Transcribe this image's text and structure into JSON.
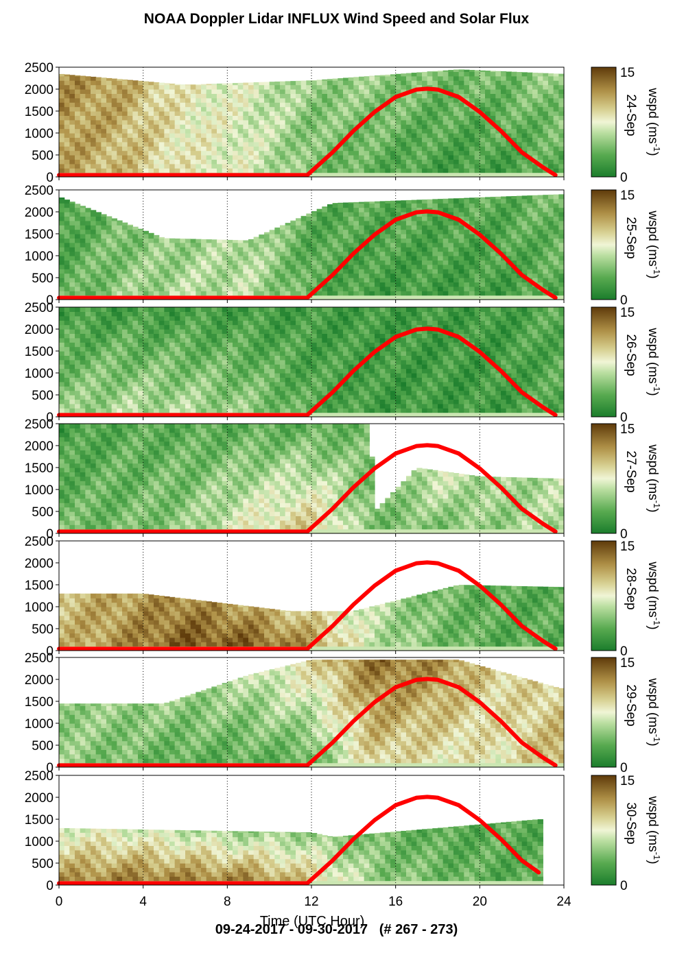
{
  "title": "NOAA Doppler Lidar INFLUX Wind Speed and Solar Flux",
  "footer": "09-24-2017 - 09-30-2017   (# 267 - 273)",
  "colors": {
    "solar_flux_line": "#ff0000",
    "wspd_low": "#1b7d2c",
    "wspd_mid": "#f0f5d6",
    "wspd_high": "#5e3a0a",
    "no_data": "#ffffff"
  },
  "chart_data": {
    "type": "heatmap",
    "title": "NOAA Doppler Lidar INFLUX Wind Speed and Solar Flux",
    "xlabel": "Time (UTC Hour)",
    "ylabel": "",
    "xlim": [
      0,
      24
    ],
    "ylim": [
      0,
      2500
    ],
    "x_ticks": [
      0,
      4,
      8,
      12,
      16,
      20,
      24
    ],
    "y_ticks": [
      0,
      500,
      1000,
      1500,
      2000,
      2500
    ],
    "grid": "vertical dotted lines at 4, 8, 12, 16, 20, 24",
    "colorbar": {
      "label": "wspd (ms-1)",
      "label_main": "wspd (ms",
      "label_sup": "-1",
      "label_close": ")",
      "min": 0,
      "max": 15,
      "ticks": [
        0,
        15
      ]
    },
    "solar_flux": {
      "x": [
        0,
        11.8,
        13,
        14,
        15,
        16,
        17,
        17.5,
        18,
        19,
        20,
        21,
        22,
        23,
        23.6
      ],
      "y": [
        40,
        40,
        560,
        1050,
        1480,
        1820,
        1990,
        2010,
        1990,
        1820,
        1480,
        1050,
        560,
        220,
        40
      ]
    },
    "panels": [
      {
        "date_label": "24-Sep",
        "data_end_hour": 23.8,
        "solar_end_hour": 23.6,
        "top_profile": [
          [
            "h",
            0,
            2350
          ],
          [
            "h",
            6,
            2100
          ],
          [
            "h",
            12,
            2200
          ],
          [
            "h",
            19,
            2450
          ],
          [
            "h",
            23.8,
            2350
          ]
        ],
        "description_fields": {
          "wind_time_hours": [
            0,
            3,
            6,
            9,
            12,
            15,
            18,
            21,
            23.8
          ],
          "wind_low_ms": [
            11,
            10,
            8,
            7,
            4,
            3,
            2,
            2,
            3
          ],
          "wind_high_ms": [
            12,
            11,
            8,
            7,
            5,
            5,
            4,
            4,
            5
          ]
        }
      },
      {
        "date_label": "25-Sep",
        "data_end_hour": 23.8,
        "solar_end_hour": 23.6,
        "top_profile": [
          [
            "h",
            0,
            2350
          ],
          [
            "h",
            5,
            1400
          ],
          [
            "h",
            9,
            1350
          ],
          [
            "h",
            13,
            2200
          ],
          [
            "h",
            23.8,
            2400
          ]
        ],
        "description_fields": {
          "wind_time_hours": [
            0,
            3,
            6,
            9,
            12,
            15,
            18,
            21,
            23.8
          ],
          "wind_low_ms": [
            3,
            5,
            6,
            6,
            3,
            2,
            2,
            2,
            3
          ],
          "wind_high_ms": [
            2,
            4,
            5,
            6,
            3,
            3,
            3,
            3,
            4
          ]
        }
      },
      {
        "date_label": "26-Sep",
        "data_end_hour": 23.8,
        "solar_end_hour": 23.6,
        "top_profile": [
          [
            "h",
            0,
            2500
          ],
          [
            "h",
            23.8,
            2500
          ]
        ],
        "description_fields": {
          "wind_time_hours": [
            0,
            3,
            6,
            9,
            12,
            15,
            18,
            21,
            23.8
          ],
          "wind_low_ms": [
            5,
            6,
            6,
            5,
            3,
            2,
            2,
            2,
            3
          ],
          "wind_high_ms": [
            2,
            2,
            2,
            2,
            2,
            2,
            2,
            2,
            3
          ]
        }
      },
      {
        "date_label": "27-Sep",
        "data_end_hour": 23.8,
        "solar_end_hour": 23.6,
        "top_profile": [
          [
            "h",
            0,
            2500
          ],
          [
            "h",
            14.8,
            2500
          ],
          [
            "h",
            15,
            500
          ],
          [
            "h",
            17,
            1500
          ],
          [
            "h",
            20,
            1300
          ],
          [
            "h",
            23.8,
            1250
          ]
        ],
        "description_fields": {
          "wind_time_hours": [
            0,
            3,
            6,
            9,
            12,
            15,
            18,
            21,
            23.8
          ],
          "wind_low_ms": [
            4,
            4,
            5,
            8,
            10,
            4,
            4,
            5,
            6
          ],
          "wind_high_ms": [
            2,
            3,
            3,
            3,
            3,
            4,
            7,
            5,
            6
          ]
        }
      },
      {
        "date_label": "28-Sep",
        "data_end_hour": 23.8,
        "solar_end_hour": 23.6,
        "top_profile": [
          [
            "h",
            0,
            1300
          ],
          [
            "h",
            4,
            1300
          ],
          [
            "h",
            11,
            900
          ],
          [
            "h",
            14,
            900
          ],
          [
            "h",
            19,
            1500
          ],
          [
            "h",
            23.8,
            1450
          ]
        ],
        "description_fields": {
          "wind_time_hours": [
            0,
            3,
            6,
            9,
            12,
            15,
            18,
            21,
            23.8
          ],
          "wind_low_ms": [
            10,
            12,
            14,
            14,
            12,
            6,
            4,
            3,
            3
          ],
          "wind_high_ms": [
            10,
            11,
            12,
            11,
            9,
            6,
            4,
            3,
            3
          ]
        }
      },
      {
        "date_label": "29-Sep",
        "data_end_hour": 23.8,
        "solar_end_hour": 23.6,
        "top_profile": [
          [
            "h",
            0,
            1450
          ],
          [
            "h",
            5,
            1450
          ],
          [
            "h",
            9,
            2100
          ],
          [
            "h",
            12,
            2450
          ],
          [
            "h",
            19,
            2450
          ],
          [
            "h",
            23.8,
            1800
          ]
        ],
        "description_fields": {
          "wind_time_hours": [
            0,
            3,
            6,
            9,
            12,
            15,
            18,
            21,
            23.8
          ],
          "wind_low_ms": [
            5,
            4,
            3,
            3,
            3,
            9,
            8,
            8,
            11
          ],
          "wind_high_ms": [
            5,
            5,
            5,
            6,
            9,
            13,
            12,
            9,
            9
          ]
        }
      },
      {
        "date_label": "30-Sep",
        "data_end_hour": 22.8,
        "solar_end_hour": 22.8,
        "top_profile": [
          [
            "h",
            0,
            1300
          ],
          [
            "h",
            12,
            1200
          ],
          [
            "h",
            13,
            1100
          ],
          [
            "h",
            18,
            1300
          ],
          [
            "h",
            22.8,
            1500
          ]
        ],
        "description_fields": {
          "wind_time_hours": [
            0,
            3,
            6,
            9,
            12,
            15,
            18,
            21,
            22.8
          ],
          "wind_low_ms": [
            12,
            13,
            13,
            13,
            10,
            5,
            4,
            3,
            3
          ],
          "wind_high_ms": [
            7,
            7,
            6,
            5,
            5,
            4,
            3,
            3,
            3
          ]
        }
      }
    ]
  }
}
